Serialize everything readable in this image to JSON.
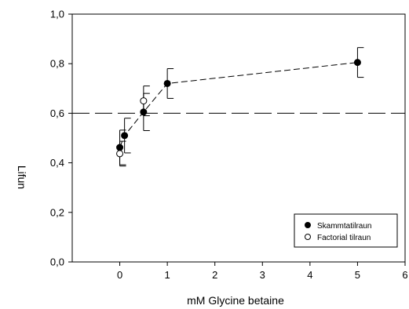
{
  "chart_data": {
    "type": "scatter",
    "xlabel": "mM Glycine betaine",
    "ylabel": "Lifun",
    "xlim": [
      -1,
      6
    ],
    "ylim": [
      0.0,
      1.0
    ],
    "xticks": [
      0,
      1,
      2,
      3,
      4,
      5,
      6
    ],
    "xtick_labels": [
      "0",
      "1",
      "2",
      "3",
      "4",
      "5",
      "6"
    ],
    "yticks": [
      0.0,
      0.2,
      0.4,
      0.6,
      0.8,
      1.0
    ],
    "ytick_labels": [
      "0,0",
      "0,2",
      "0,4",
      "0,6",
      "0,8",
      "1,0"
    ],
    "reference_line": {
      "y": 0.6,
      "style": "long-dash"
    },
    "grid": false,
    "legend_position": "bottom-right",
    "series": [
      {
        "name": "Skammtatilraun",
        "marker": "filled-circle",
        "color": "#000000",
        "line": "dashed",
        "points": [
          {
            "x": 0.0,
            "y": 0.462,
            "err": 0.07
          },
          {
            "x": 0.1,
            "y": 0.51,
            "err": 0.07
          },
          {
            "x": 0.5,
            "y": 0.605,
            "err": 0.075
          },
          {
            "x": 1.0,
            "y": 0.72,
            "err": 0.06
          },
          {
            "x": 5.0,
            "y": 0.805,
            "err": 0.06
          }
        ]
      },
      {
        "name": "Factorial tilraun",
        "marker": "open-circle",
        "color": "#000000",
        "line": "none",
        "points": [
          {
            "x": 0.0,
            "y": 0.437,
            "err": 0.05
          },
          {
            "x": 0.5,
            "y": 0.65,
            "err": 0.06
          }
        ]
      }
    ]
  }
}
